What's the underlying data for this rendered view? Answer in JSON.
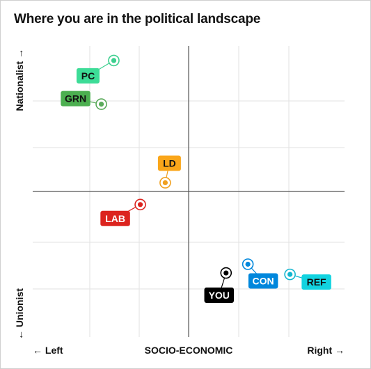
{
  "title": "Where you are in the political landscape",
  "chart_data": {
    "type": "scatter",
    "title": "Where you are in the political landscape",
    "xlabel": "SOCIO-ECONOMIC",
    "x_left_label": "← Left",
    "x_right_label": "Right →",
    "y_top_label": "Nationalist →",
    "y_bottom_label": "← Unionist",
    "xlim": [
      -5,
      5
    ],
    "ylim": [
      -5,
      5
    ],
    "grid": true,
    "points": [
      {
        "name": "PC",
        "x": -2.4,
        "y": 4.5,
        "color": "#3ccf8e",
        "label_color": "#3ddc97",
        "text_color": "#111111"
      },
      {
        "name": "GRN",
        "x": -2.8,
        "y": 3.0,
        "color": "#5aaa5a",
        "label_color": "#4caf50",
        "text_color": "#111111"
      },
      {
        "name": "LD",
        "x": -0.75,
        "y": 0.3,
        "color": "#f0a020",
        "label_color": "#faa61a",
        "text_color": "#111111"
      },
      {
        "name": "LAB",
        "x": -1.55,
        "y": -0.45,
        "color": "#dc241f",
        "label_color": "#dc241f",
        "text_color": "#ffffff"
      },
      {
        "name": "YOU",
        "x": 1.2,
        "y": -2.8,
        "color": "#000000",
        "label_color": "#000000",
        "text_color": "#ffffff"
      },
      {
        "name": "CON",
        "x": 1.9,
        "y": -2.5,
        "color": "#0087dc",
        "label_color": "#0087dc",
        "text_color": "#ffffff"
      },
      {
        "name": "REF",
        "x": 3.25,
        "y": -2.85,
        "color": "#12b6cf",
        "label_color": "#12d3e0",
        "text_color": "#111111"
      }
    ]
  }
}
